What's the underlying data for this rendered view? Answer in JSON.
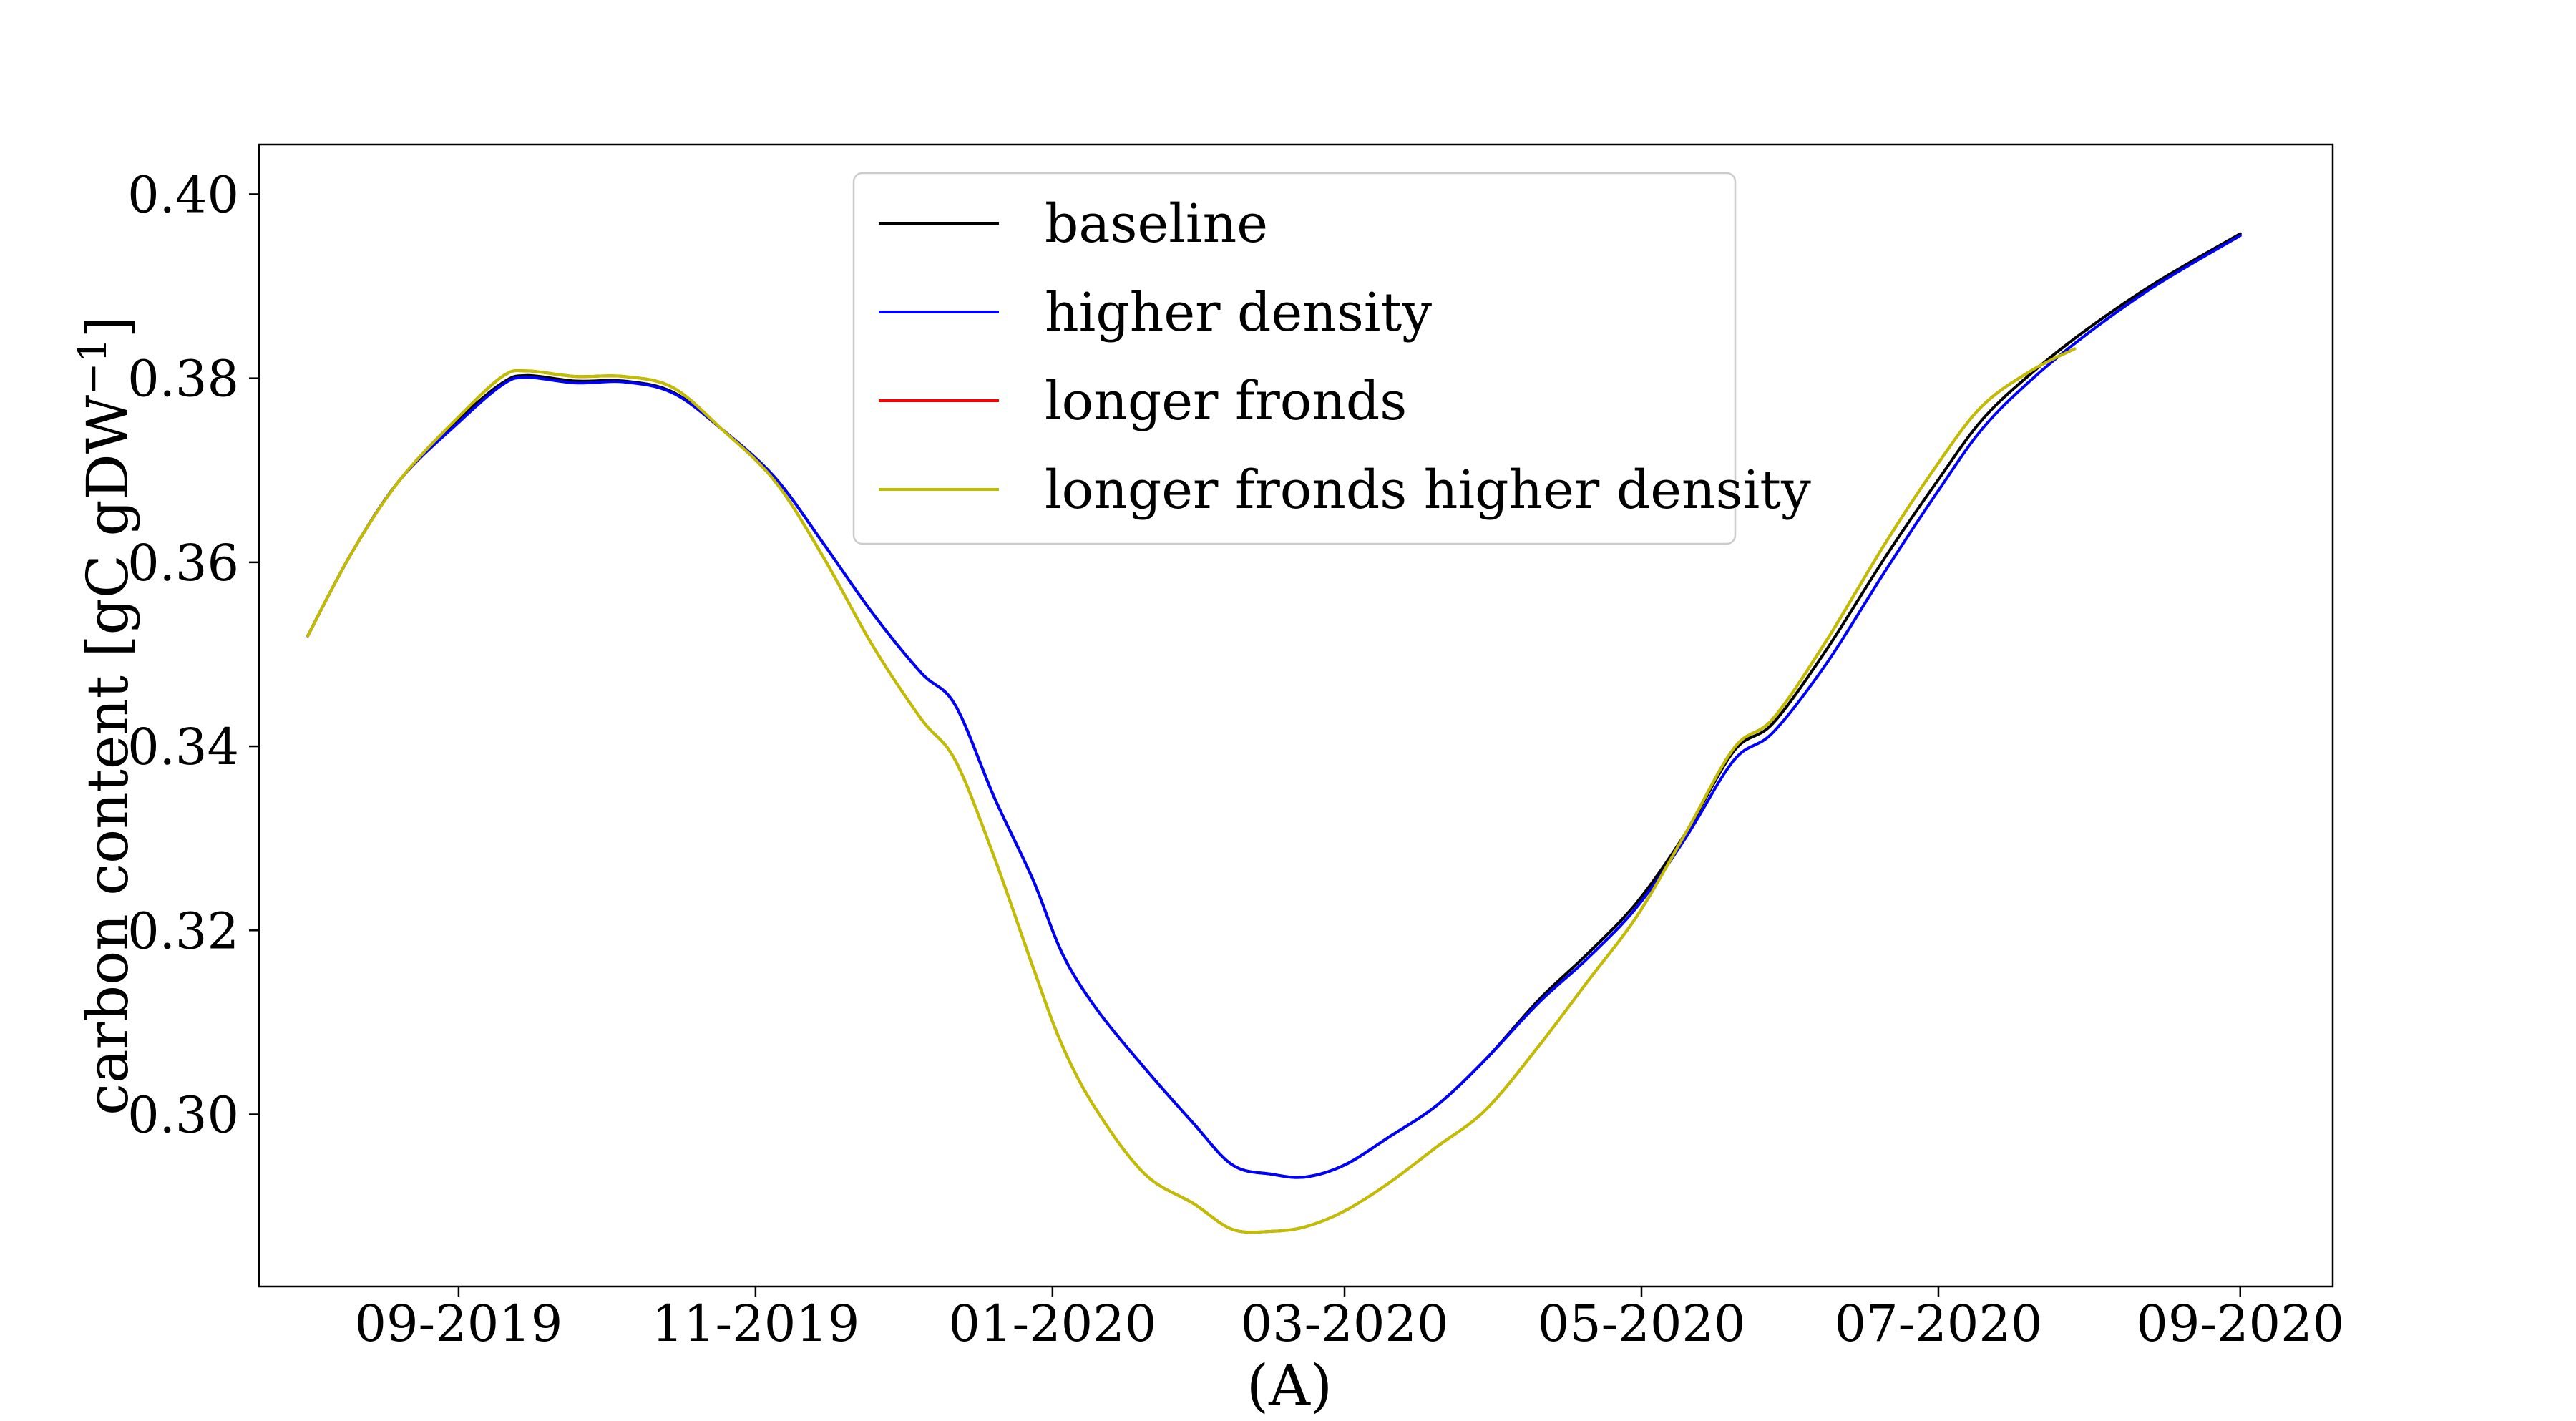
{
  "chart_data": {
    "type": "line",
    "title": "",
    "xlabel": "(A)",
    "ylabel": "carbon content [gC gDW",
    "ylabel_superscript": "−1",
    "ylabel_close": "]",
    "x_tick_labels": [
      "09-2019",
      "11-2019",
      "01-2020",
      "03-2020",
      "05-2020",
      "07-2020",
      "09-2020"
    ],
    "x_tick_dates": [
      "2019-09-01",
      "2019-11-01",
      "2020-01-01",
      "2020-03-01",
      "2020-05-01",
      "2020-07-01",
      "2020-09-01"
    ],
    "y_ticks": [
      0.3,
      0.32,
      0.34,
      0.36,
      0.38,
      0.4
    ],
    "y_tick_labels": [
      "0.30",
      "0.32",
      "0.34",
      "0.36",
      "0.38",
      "0.40"
    ],
    "xlim": [
      "2019-07-22",
      "2020-09-20"
    ],
    "ylim": [
      0.2813,
      0.4054
    ],
    "grid": false,
    "legend_position": "top-center",
    "series": [
      {
        "name": "baseline",
        "color": "#000000",
        "points": [
          [
            "2019-08-01",
            0.352
          ],
          [
            "2019-08-10",
            0.361
          ],
          [
            "2019-08-20",
            0.369
          ],
          [
            "2019-09-01",
            0.3755
          ],
          [
            "2019-09-10",
            0.3795
          ],
          [
            "2019-09-15",
            0.3803
          ],
          [
            "2019-09-25",
            0.3797
          ],
          [
            "2019-10-05",
            0.3797
          ],
          [
            "2019-10-15",
            0.3785
          ],
          [
            "2019-10-25",
            0.3745
          ],
          [
            "2019-11-05",
            0.3692
          ],
          [
            "2019-11-15",
            0.362
          ],
          [
            "2019-11-25",
            0.3545
          ],
          [
            "2019-12-05",
            0.348
          ],
          [
            "2019-12-12",
            0.3445
          ],
          [
            "2019-12-20",
            0.3345
          ],
          [
            "2019-12-28",
            0.3255
          ],
          [
            "2020-01-03",
            0.3175
          ],
          [
            "2020-01-10",
            0.3115
          ],
          [
            "2020-01-20",
            0.305
          ],
          [
            "2020-01-30",
            0.299
          ],
          [
            "2020-02-07",
            0.2945
          ],
          [
            "2020-02-15",
            0.2935
          ],
          [
            "2020-02-22",
            0.2932
          ],
          [
            "2020-03-01",
            0.2945
          ],
          [
            "2020-03-10",
            0.2975
          ],
          [
            "2020-03-20",
            0.301
          ],
          [
            "2020-03-30",
            0.306
          ],
          [
            "2020-04-10",
            0.3125
          ],
          [
            "2020-04-20",
            0.3175
          ],
          [
            "2020-04-30",
            0.323
          ],
          [
            "2020-05-10",
            0.3305
          ],
          [
            "2020-05-20",
            0.3395
          ],
          [
            "2020-05-28",
            0.3425
          ],
          [
            "2020-06-08",
            0.3505
          ],
          [
            "2020-06-20",
            0.3605
          ],
          [
            "2020-07-01",
            0.369
          ],
          [
            "2020-07-10",
            0.3755
          ],
          [
            "2020-07-20",
            0.3805
          ],
          [
            "2020-08-01",
            0.3855
          ],
          [
            "2020-08-15",
            0.3905
          ],
          [
            "2020-09-01",
            0.3957
          ]
        ]
      },
      {
        "name": "higher density",
        "color": "#0000ff",
        "points": [
          [
            "2019-08-01",
            0.352
          ],
          [
            "2019-08-10",
            0.361
          ],
          [
            "2019-08-20",
            0.369
          ],
          [
            "2019-09-01",
            0.3752
          ],
          [
            "2019-09-10",
            0.3793
          ],
          [
            "2019-09-15",
            0.3801
          ],
          [
            "2019-09-25",
            0.3795
          ],
          [
            "2019-10-05",
            0.3796
          ],
          [
            "2019-10-15",
            0.3784
          ],
          [
            "2019-10-25",
            0.3745
          ],
          [
            "2019-11-05",
            0.3692
          ],
          [
            "2019-11-15",
            0.362
          ],
          [
            "2019-11-25",
            0.3545
          ],
          [
            "2019-12-05",
            0.348
          ],
          [
            "2019-12-12",
            0.3445
          ],
          [
            "2019-12-20",
            0.3345
          ],
          [
            "2019-12-28",
            0.3255
          ],
          [
            "2020-01-03",
            0.3175
          ],
          [
            "2020-01-10",
            0.3115
          ],
          [
            "2020-01-20",
            0.305
          ],
          [
            "2020-01-30",
            0.299
          ],
          [
            "2020-02-07",
            0.2945
          ],
          [
            "2020-02-15",
            0.2935
          ],
          [
            "2020-02-22",
            0.2932
          ],
          [
            "2020-03-01",
            0.2945
          ],
          [
            "2020-03-10",
            0.2975
          ],
          [
            "2020-03-20",
            0.301
          ],
          [
            "2020-03-30",
            0.306
          ],
          [
            "2020-04-10",
            0.3122
          ],
          [
            "2020-04-20",
            0.317
          ],
          [
            "2020-04-30",
            0.3225
          ],
          [
            "2020-05-10",
            0.33
          ],
          [
            "2020-05-20",
            0.3385
          ],
          [
            "2020-05-28",
            0.3415
          ],
          [
            "2020-06-08",
            0.349
          ],
          [
            "2020-06-20",
            0.359
          ],
          [
            "2020-07-01",
            0.3678
          ],
          [
            "2020-07-10",
            0.3745
          ],
          [
            "2020-07-20",
            0.3798
          ],
          [
            "2020-08-01",
            0.385
          ],
          [
            "2020-08-15",
            0.3902
          ],
          [
            "2020-09-01",
            0.3955
          ]
        ]
      },
      {
        "name": "longer fronds",
        "color": "#ff0000",
        "points": [
          [
            "2019-08-01",
            0.352
          ],
          [
            "2019-08-10",
            0.361
          ],
          [
            "2019-08-20",
            0.369
          ],
          [
            "2019-09-01",
            0.3758
          ],
          [
            "2019-09-10",
            0.3802
          ],
          [
            "2019-09-15",
            0.3808
          ],
          [
            "2019-09-25",
            0.3802
          ],
          [
            "2019-10-05",
            0.3802
          ],
          [
            "2019-10-15",
            0.379
          ],
          [
            "2019-10-25",
            0.3745
          ],
          [
            "2019-11-05",
            0.3688
          ],
          [
            "2019-11-15",
            0.3605
          ],
          [
            "2019-11-25",
            0.351
          ],
          [
            "2019-12-05",
            0.343
          ],
          [
            "2019-12-12",
            0.3385
          ],
          [
            "2019-12-20",
            0.328
          ],
          [
            "2019-12-28",
            0.316
          ],
          [
            "2020-01-03",
            0.3075
          ],
          [
            "2020-01-10",
            0.3005
          ],
          [
            "2020-01-20",
            0.2935
          ],
          [
            "2020-01-30",
            0.2903
          ],
          [
            "2020-02-07",
            0.2875
          ],
          [
            "2020-02-15",
            0.2873
          ],
          [
            "2020-02-22",
            0.2878
          ],
          [
            "2020-03-01",
            0.2895
          ],
          [
            "2020-03-10",
            0.2925
          ],
          [
            "2020-03-20",
            0.2965
          ],
          [
            "2020-03-30",
            0.3005
          ],
          [
            "2020-04-10",
            0.3075
          ],
          [
            "2020-04-20",
            0.3145
          ],
          [
            "2020-04-30",
            0.3215
          ],
          [
            "2020-05-10",
            0.3305
          ],
          [
            "2020-05-20",
            0.3398
          ],
          [
            "2020-05-28",
            0.343
          ],
          [
            "2020-06-08",
            0.3515
          ],
          [
            "2020-06-20",
            0.362
          ],
          [
            "2020-07-01",
            0.3708
          ],
          [
            "2020-07-10",
            0.377
          ],
          [
            "2020-07-20",
            0.3808
          ],
          [
            "2020-07-29",
            0.3832
          ]
        ]
      },
      {
        "name": "longer fronds higher density",
        "color": "#bfbf00",
        "points": [
          [
            "2019-08-01",
            0.352
          ],
          [
            "2019-08-10",
            0.361
          ],
          [
            "2019-08-20",
            0.369
          ],
          [
            "2019-09-01",
            0.3758
          ],
          [
            "2019-09-10",
            0.3802
          ],
          [
            "2019-09-15",
            0.3808
          ],
          [
            "2019-09-25",
            0.3802
          ],
          [
            "2019-10-05",
            0.3802
          ],
          [
            "2019-10-15",
            0.379
          ],
          [
            "2019-10-25",
            0.3745
          ],
          [
            "2019-11-05",
            0.3688
          ],
          [
            "2019-11-15",
            0.3605
          ],
          [
            "2019-11-25",
            0.351
          ],
          [
            "2019-12-05",
            0.343
          ],
          [
            "2019-12-12",
            0.3385
          ],
          [
            "2019-12-20",
            0.328
          ],
          [
            "2019-12-28",
            0.316
          ],
          [
            "2020-01-03",
            0.3075
          ],
          [
            "2020-01-10",
            0.3005
          ],
          [
            "2020-01-20",
            0.2935
          ],
          [
            "2020-01-30",
            0.2903
          ],
          [
            "2020-02-07",
            0.2875
          ],
          [
            "2020-02-15",
            0.2873
          ],
          [
            "2020-02-22",
            0.2878
          ],
          [
            "2020-03-01",
            0.2895
          ],
          [
            "2020-03-10",
            0.2925
          ],
          [
            "2020-03-20",
            0.2965
          ],
          [
            "2020-03-30",
            0.3005
          ],
          [
            "2020-04-10",
            0.3075
          ],
          [
            "2020-04-20",
            0.3145
          ],
          [
            "2020-04-30",
            0.3215
          ],
          [
            "2020-05-10",
            0.3305
          ],
          [
            "2020-05-20",
            0.3398
          ],
          [
            "2020-05-28",
            0.343
          ],
          [
            "2020-06-08",
            0.3515
          ],
          [
            "2020-06-20",
            0.362
          ],
          [
            "2020-07-01",
            0.3708
          ],
          [
            "2020-07-10",
            0.377
          ],
          [
            "2020-07-20",
            0.3808
          ],
          [
            "2020-07-29",
            0.3832
          ]
        ]
      }
    ]
  }
}
